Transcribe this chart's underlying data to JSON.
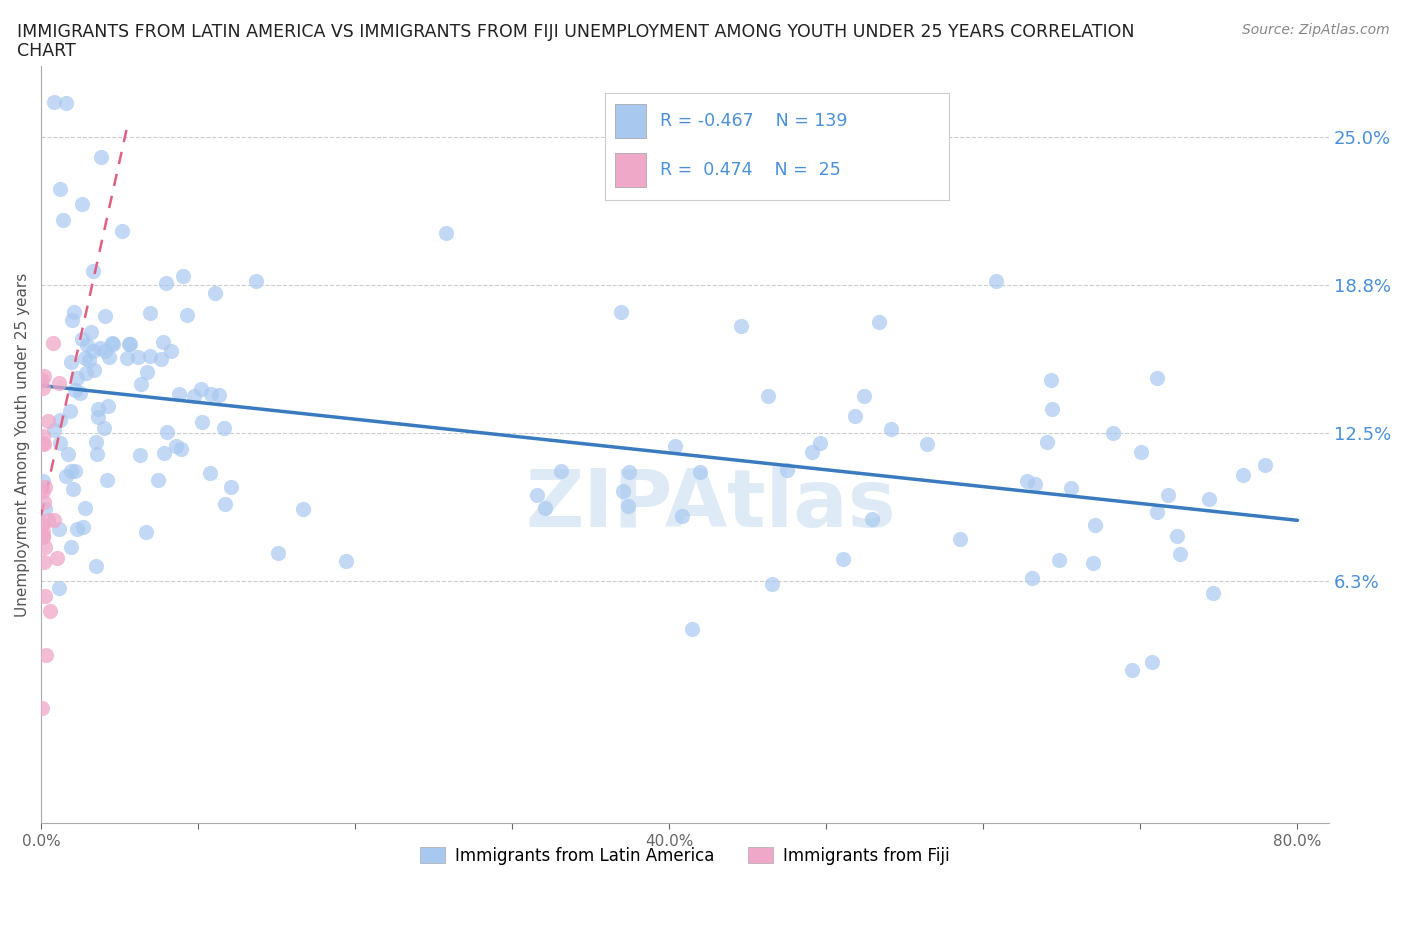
{
  "title_line1": "IMMIGRANTS FROM LATIN AMERICA VS IMMIGRANTS FROM FIJI UNEMPLOYMENT AMONG YOUTH UNDER 25 YEARS CORRELATION",
  "title_line2": "CHART",
  "source": "Source: ZipAtlas.com",
  "ylabel": "Unemployment Among Youth under 25 years",
  "xlim": [
    0.0,
    0.82
  ],
  "ylim": [
    -0.04,
    0.28
  ],
  "yticks": [
    0.0,
    0.0625,
    0.125,
    0.1875,
    0.25
  ],
  "ytick_labels": [
    "",
    "6.3%",
    "12.5%",
    "18.8%",
    "25.0%"
  ],
  "xticks": [
    0.0,
    0.1,
    0.2,
    0.3,
    0.4,
    0.5,
    0.6,
    0.7,
    0.8
  ],
  "xtick_labels": [
    "0.0%",
    "",
    "",
    "",
    "40.0%",
    "",
    "",
    "",
    "80.0%"
  ],
  "grid_yticks": [
    0.0625,
    0.125,
    0.1875,
    0.25
  ],
  "blue_color": "#a8c8f0",
  "pink_color": "#f0a8c8",
  "trend_blue_color": "#3a7abf",
  "trend_pink_color": "#e06080",
  "legend_blue_R": "-0.467",
  "legend_blue_N": "139",
  "legend_pink_R": "0.474",
  "legend_pink_N": "25",
  "label_blue": "Immigrants from Latin America",
  "label_pink": "Immigrants from Fiji",
  "watermark": "ZIPAtlas",
  "watermark_color": "#c8dcf0",
  "blue_trend_x0": 0.0,
  "blue_trend_y0": 0.145,
  "blue_trend_x1": 0.8,
  "blue_trend_y1": 0.088,
  "pink_trend_x0": 0.0,
  "pink_trend_y0": 0.09,
  "pink_trend_x1": 0.055,
  "pink_trend_y1": 0.255
}
